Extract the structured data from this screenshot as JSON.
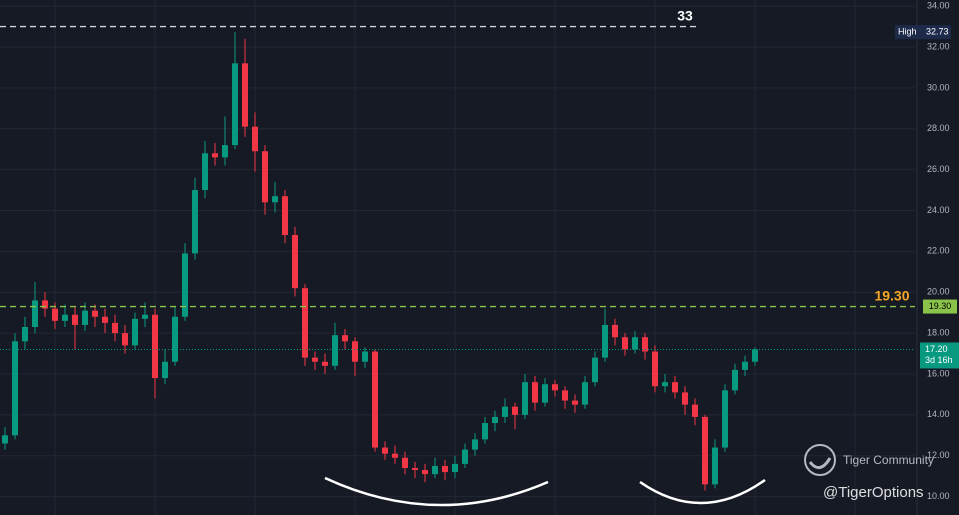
{
  "chart_data": {
    "type": "candlestick",
    "ylim": [
      9.1,
      34.3
    ],
    "yticks": [
      {
        "value": 10,
        "label": "10.00"
      },
      {
        "value": 12,
        "label": "12.00"
      },
      {
        "value": 14,
        "label": "14.00"
      },
      {
        "value": 16,
        "label": "16.00"
      },
      {
        "value": 18,
        "label": "18.00"
      },
      {
        "value": 20,
        "label": "20.00"
      },
      {
        "value": 22,
        "label": "22.00"
      },
      {
        "value": 24,
        "label": "24.00"
      },
      {
        "value": 26,
        "label": "26.00"
      },
      {
        "value": 28,
        "label": "28.00"
      },
      {
        "value": 30,
        "label": "30.00"
      },
      {
        "value": 32,
        "label": "32.00"
      },
      {
        "value": 34,
        "label": "34.00"
      }
    ],
    "grid": true,
    "up_color": "#089981",
    "down_color": "#f23645",
    "candles": [
      {
        "open": 12.6,
        "high": 13.4,
        "low": 12.3,
        "close": 13.0
      },
      {
        "open": 13.0,
        "high": 18.0,
        "low": 12.8,
        "close": 17.6
      },
      {
        "open": 17.6,
        "high": 18.8,
        "low": 17.2,
        "close": 18.3
      },
      {
        "open": 18.3,
        "high": 20.5,
        "low": 18.0,
        "close": 19.6
      },
      {
        "open": 19.6,
        "high": 20.0,
        "low": 18.8,
        "close": 19.2
      },
      {
        "open": 19.2,
        "high": 19.5,
        "low": 18.2,
        "close": 18.6
      },
      {
        "open": 18.6,
        "high": 19.4,
        "low": 18.3,
        "close": 18.9
      },
      {
        "open": 18.9,
        "high": 19.3,
        "low": 17.2,
        "close": 18.4
      },
      {
        "open": 18.4,
        "high": 19.5,
        "low": 18.1,
        "close": 19.1
      },
      {
        "open": 19.1,
        "high": 19.4,
        "low": 18.3,
        "close": 18.8
      },
      {
        "open": 18.8,
        "high": 19.2,
        "low": 18.0,
        "close": 18.5
      },
      {
        "open": 18.5,
        "high": 18.9,
        "low": 17.6,
        "close": 18.0
      },
      {
        "open": 18.0,
        "high": 18.4,
        "low": 17.0,
        "close": 17.4
      },
      {
        "open": 17.4,
        "high": 19.0,
        "low": 17.2,
        "close": 18.7
      },
      {
        "open": 18.7,
        "high": 19.5,
        "low": 18.3,
        "close": 18.9
      },
      {
        "open": 18.9,
        "high": 19.2,
        "low": 14.8,
        "close": 15.8
      },
      {
        "open": 15.8,
        "high": 17.2,
        "low": 15.5,
        "close": 16.6
      },
      {
        "open": 16.6,
        "high": 19.3,
        "low": 16.4,
        "close": 18.8
      },
      {
        "open": 18.8,
        "high": 22.4,
        "low": 18.6,
        "close": 21.9
      },
      {
        "open": 21.9,
        "high": 25.6,
        "low": 21.6,
        "close": 25.0
      },
      {
        "open": 25.0,
        "high": 27.4,
        "low": 24.6,
        "close": 26.8
      },
      {
        "open": 26.8,
        "high": 27.3,
        "low": 26.2,
        "close": 26.6
      },
      {
        "open": 26.6,
        "high": 28.6,
        "low": 26.2,
        "close": 27.2
      },
      {
        "open": 27.2,
        "high": 32.73,
        "low": 27.0,
        "close": 31.2
      },
      {
        "open": 31.2,
        "high": 32.4,
        "low": 27.6,
        "close": 28.1
      },
      {
        "open": 28.1,
        "high": 28.8,
        "low": 25.9,
        "close": 26.9
      },
      {
        "open": 26.9,
        "high": 27.2,
        "low": 23.8,
        "close": 24.4
      },
      {
        "open": 24.4,
        "high": 25.4,
        "low": 23.9,
        "close": 24.7
      },
      {
        "open": 24.7,
        "high": 25.0,
        "low": 22.4,
        "close": 22.8
      },
      {
        "open": 22.8,
        "high": 23.2,
        "low": 19.8,
        "close": 20.2
      },
      {
        "open": 20.2,
        "high": 20.4,
        "low": 16.4,
        "close": 16.8
      },
      {
        "open": 16.8,
        "high": 17.1,
        "low": 16.2,
        "close": 16.6
      },
      {
        "open": 16.6,
        "high": 17.0,
        "low": 16.0,
        "close": 16.4
      },
      {
        "open": 16.4,
        "high": 18.5,
        "low": 16.2,
        "close": 17.9
      },
      {
        "open": 17.9,
        "high": 18.2,
        "low": 17.2,
        "close": 17.6
      },
      {
        "open": 17.6,
        "high": 17.8,
        "low": 15.9,
        "close": 16.6
      },
      {
        "open": 16.6,
        "high": 17.3,
        "low": 16.3,
        "close": 17.1
      },
      {
        "open": 17.1,
        "high": 17.2,
        "low": 12.2,
        "close": 12.4
      },
      {
        "open": 12.4,
        "high": 12.7,
        "low": 11.8,
        "close": 12.1
      },
      {
        "open": 12.1,
        "high": 12.5,
        "low": 11.6,
        "close": 11.9
      },
      {
        "open": 11.9,
        "high": 12.2,
        "low": 11.1,
        "close": 11.4
      },
      {
        "open": 11.4,
        "high": 11.7,
        "low": 10.9,
        "close": 11.3
      },
      {
        "open": 11.3,
        "high": 11.6,
        "low": 10.7,
        "close": 11.1
      },
      {
        "open": 11.1,
        "high": 11.9,
        "low": 10.9,
        "close": 11.5
      },
      {
        "open": 11.5,
        "high": 11.8,
        "low": 10.8,
        "close": 11.2
      },
      {
        "open": 11.2,
        "high": 12.0,
        "low": 10.9,
        "close": 11.6
      },
      {
        "open": 11.6,
        "high": 12.6,
        "low": 11.4,
        "close": 12.3
      },
      {
        "open": 12.3,
        "high": 13.1,
        "low": 12.0,
        "close": 12.8
      },
      {
        "open": 12.8,
        "high": 13.9,
        "low": 12.6,
        "close": 13.6
      },
      {
        "open": 13.6,
        "high": 14.2,
        "low": 13.2,
        "close": 13.9
      },
      {
        "open": 13.9,
        "high": 14.8,
        "low": 13.6,
        "close": 14.4
      },
      {
        "open": 14.4,
        "high": 14.6,
        "low": 13.3,
        "close": 14.0
      },
      {
        "open": 14.0,
        "high": 16.0,
        "low": 13.8,
        "close": 15.6
      },
      {
        "open": 15.6,
        "high": 15.9,
        "low": 14.2,
        "close": 14.6
      },
      {
        "open": 14.6,
        "high": 15.8,
        "low": 14.4,
        "close": 15.5
      },
      {
        "open": 15.5,
        "high": 15.7,
        "low": 14.9,
        "close": 15.2
      },
      {
        "open": 15.2,
        "high": 15.4,
        "low": 14.3,
        "close": 14.7
      },
      {
        "open": 14.7,
        "high": 15.0,
        "low": 14.1,
        "close": 14.5
      },
      {
        "open": 14.5,
        "high": 15.9,
        "low": 14.3,
        "close": 15.6
      },
      {
        "open": 15.6,
        "high": 17.1,
        "low": 15.4,
        "close": 16.8
      },
      {
        "open": 16.8,
        "high": 19.2,
        "low": 16.6,
        "close": 18.4
      },
      {
        "open": 18.4,
        "high": 18.7,
        "low": 17.4,
        "close": 17.8
      },
      {
        "open": 17.8,
        "high": 18.0,
        "low": 16.9,
        "close": 17.2
      },
      {
        "open": 17.2,
        "high": 18.1,
        "low": 17.0,
        "close": 17.8
      },
      {
        "open": 17.8,
        "high": 18.0,
        "low": 16.7,
        "close": 17.1
      },
      {
        "open": 17.1,
        "high": 17.4,
        "low": 15.1,
        "close": 15.4
      },
      {
        "open": 15.4,
        "high": 16.0,
        "low": 15.1,
        "close": 15.6
      },
      {
        "open": 15.6,
        "high": 15.9,
        "low": 14.8,
        "close": 15.1
      },
      {
        "open": 15.1,
        "high": 15.4,
        "low": 14.0,
        "close": 14.5
      },
      {
        "open": 14.5,
        "high": 14.8,
        "low": 13.5,
        "close": 13.9
      },
      {
        "open": 13.9,
        "high": 14.0,
        "low": 10.3,
        "close": 10.6
      },
      {
        "open": 10.6,
        "high": 12.8,
        "low": 10.4,
        "close": 12.4
      },
      {
        "open": 12.4,
        "high": 15.5,
        "low": 12.2,
        "close": 15.2
      },
      {
        "open": 15.2,
        "high": 16.5,
        "low": 15.0,
        "close": 16.2
      },
      {
        "open": 16.2,
        "high": 16.9,
        "low": 15.9,
        "close": 16.6
      },
      {
        "open": 16.6,
        "high": 17.3,
        "low": 16.4,
        "close": 17.2
      }
    ],
    "levels": [
      {
        "value": 33,
        "label": "33",
        "line_color": "#d1d4dc",
        "text_color": "#ffffff"
      },
      {
        "value": 19.3,
        "value_label": "19.30",
        "label": "19.30",
        "line_color": "#8bc34a",
        "text_color": "#f5a623"
      }
    ],
    "high_tag": {
      "label": "High",
      "value": 32.73
    },
    "last_price": {
      "value": 17.2,
      "value_label": "17.20",
      "countdown": "3d 16h",
      "color": "#089981"
    },
    "watermark": {
      "brand": "Tiger Community",
      "handle": "@TigerOptions"
    }
  }
}
